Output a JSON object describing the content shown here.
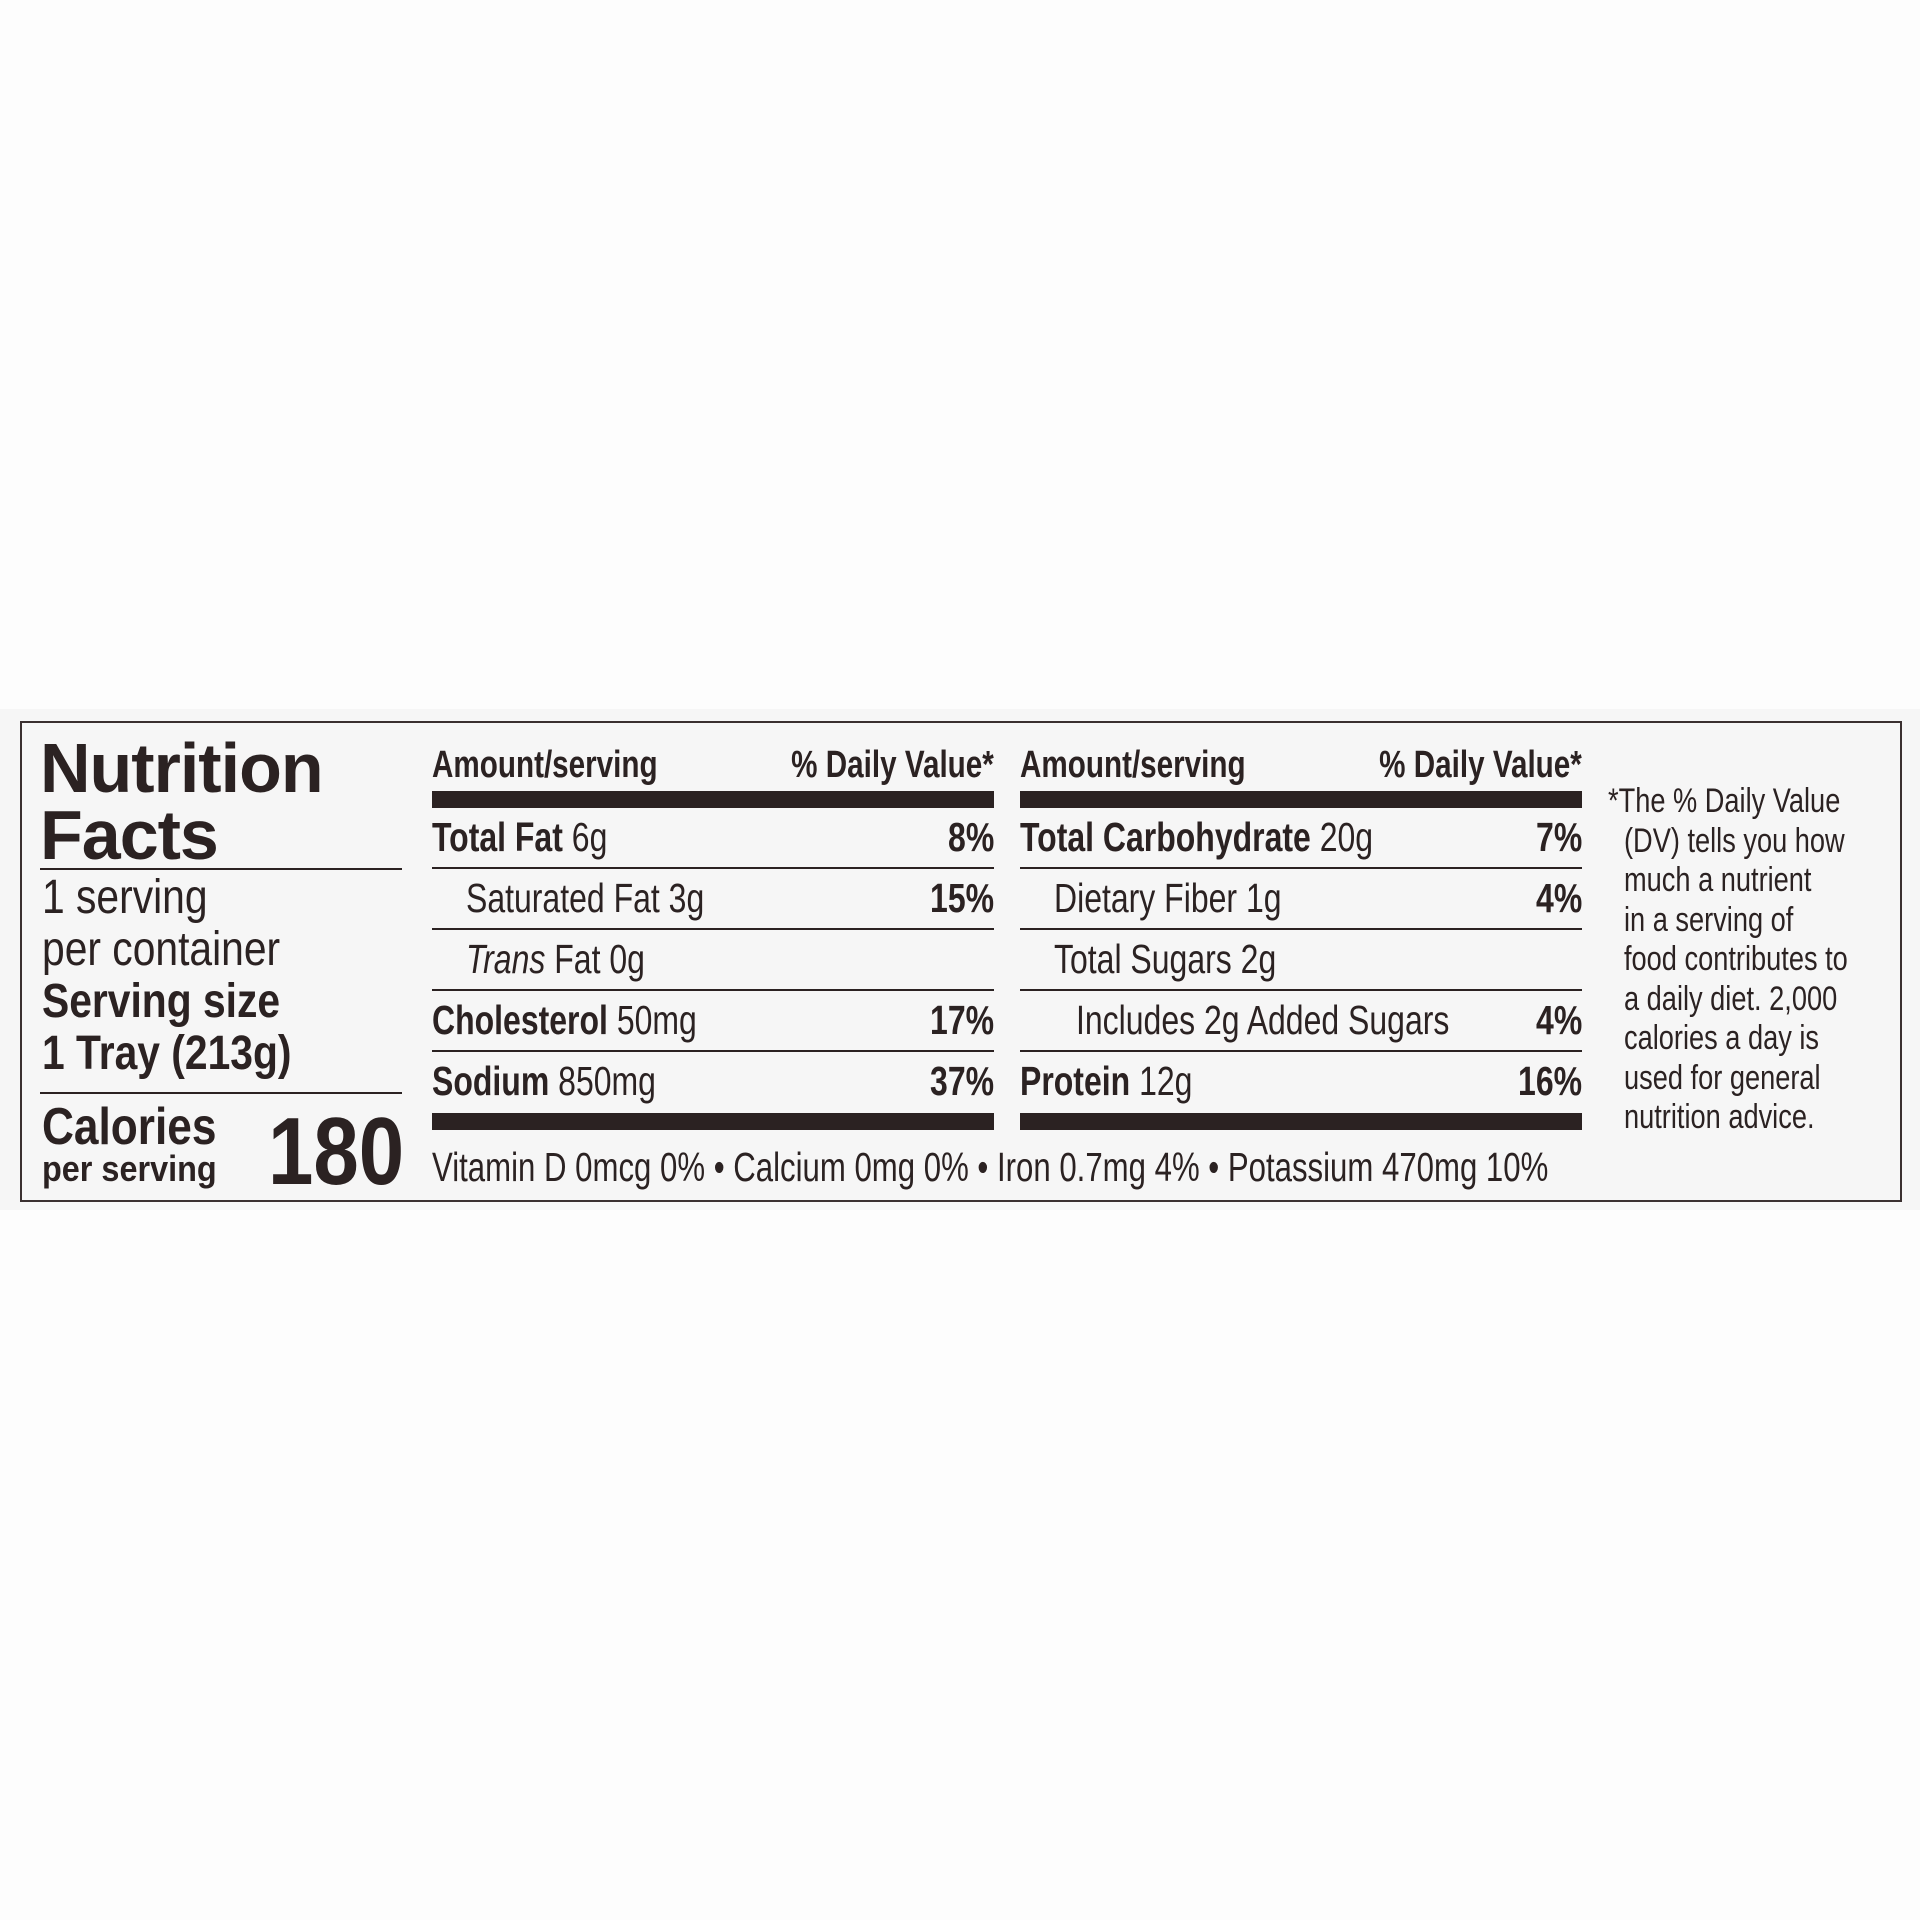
{
  "label": {
    "title_line1": "Nutrition",
    "title_line2": "Facts",
    "servings_line1": "1 serving",
    "servings_line2": "per container",
    "serving_size_label": "Serving size",
    "serving_size_value": "1 Tray (213g)",
    "calories_label": "Calories",
    "calories_sub": "per serving",
    "calories_value": "180",
    "columns": [
      {
        "header_left": "Amount/serving",
        "header_right": "% Daily Value*",
        "rows": [
          {
            "name": "Total Fat",
            "amount": "6g",
            "dv": "8%",
            "bold": true,
            "indent": 0
          },
          {
            "name": "Saturated Fat",
            "amount": "3g",
            "dv": "15%",
            "bold": false,
            "indent": 1
          },
          {
            "name": "Trans",
            "name_rest": "Fat",
            "amount": "0g",
            "dv": "",
            "bold": false,
            "indent": 1,
            "italic_prefix": true
          },
          {
            "name": "Cholesterol",
            "amount": "50mg",
            "dv": "17%",
            "bold": true,
            "indent": 0
          },
          {
            "name": "Sodium",
            "amount": "850mg",
            "dv": "37%",
            "bold": true,
            "indent": 0
          }
        ]
      },
      {
        "header_left": "Amount/serving",
        "header_right": "% Daily Value*",
        "rows": [
          {
            "name": "Total Carbohydrate",
            "amount": "20g",
            "dv": "7%",
            "bold": true,
            "indent": 0
          },
          {
            "name": "Dietary Fiber",
            "amount": "1g",
            "dv": "4%",
            "bold": false,
            "indent": 1
          },
          {
            "name": "Total Sugars",
            "amount": "2g",
            "dv": "",
            "bold": false,
            "indent": 1
          },
          {
            "name": "Includes 2g Added Sugars",
            "amount": "",
            "dv": "4%",
            "bold": false,
            "indent": 2
          },
          {
            "name": "Protein",
            "amount": "12g",
            "dv": "16%",
            "bold": true,
            "indent": 0
          }
        ]
      }
    ],
    "micronutrients": "Vitamin D 0mcg 0% • Calcium 0mg 0% • Iron 0.7mg 4% • Potassium 470mg 10%",
    "footnote_lines": [
      "*The % Daily Value",
      "(DV) tells you how",
      "much a nutrient",
      "in a serving of",
      "food contributes to",
      "a daily diet. 2,000",
      "calories a day is",
      "used for general",
      "nutrition advice."
    ]
  },
  "colors": {
    "ink": "#2b2222",
    "panel": "#f6f6f6",
    "background": "#fdfdfd"
  }
}
